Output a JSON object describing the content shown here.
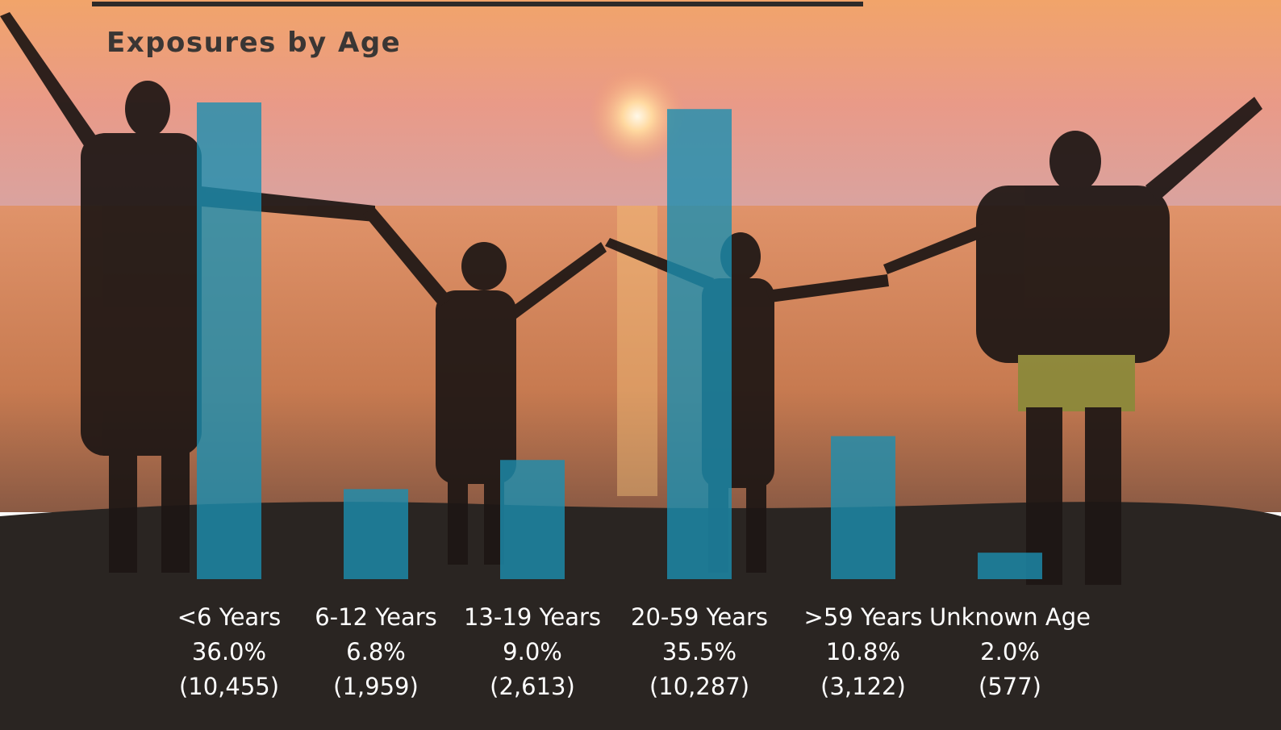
{
  "chart_data": {
    "type": "bar",
    "title": "Exposures by Age",
    "categories": [
      "<6 Years",
      "6-12 Years",
      "13-19 Years",
      "20-59 Years",
      ">59 Years",
      "Unknown Age"
    ],
    "values": [
      36.0,
      6.8,
      9.0,
      35.5,
      10.8,
      2.0
    ],
    "value_labels": [
      "36.0%",
      "6.8%",
      "9.0%",
      "35.5%",
      "10.8%",
      "2.0%"
    ],
    "counts": [
      10455,
      1959,
      2613,
      10287,
      3122,
      577
    ],
    "count_labels": [
      "(10,455)",
      "(1,959)",
      "(2,613)",
      "(10,287)",
      "(3,122)",
      "(577)"
    ],
    "color": "#1c8fb0"
  }
}
